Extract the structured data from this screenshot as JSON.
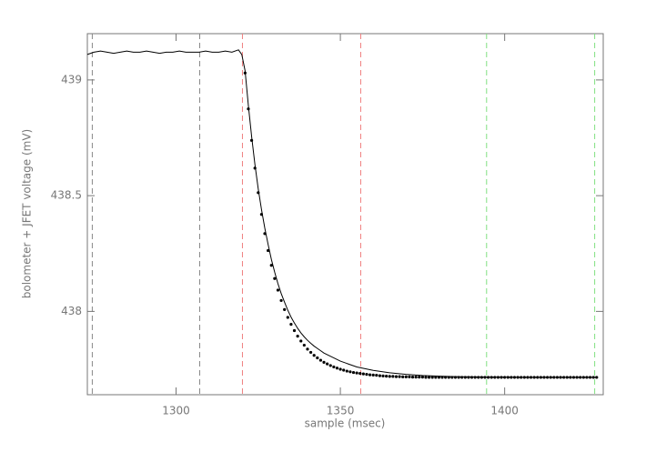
{
  "chart_data": {
    "type": "line",
    "xlabel": "sample (msec)",
    "ylabel": "bolometer + JFET voltage (mV)",
    "xlim": [
      1273,
      1430
    ],
    "ylim": [
      437.64,
      439.2
    ],
    "xticks": [
      1300,
      1350,
      1400
    ],
    "yticks": [
      438,
      438.5,
      439
    ],
    "vlines": [
      {
        "x": 1274.5,
        "color": "#888888"
      },
      {
        "x": 1307.2,
        "color": "#888888"
      },
      {
        "x": 1320.2,
        "color": "#f08080"
      },
      {
        "x": 1356.2,
        "color": "#f08080"
      },
      {
        "x": 1394.5,
        "color": "#80e080"
      },
      {
        "x": 1427.4,
        "color": "#80e080"
      }
    ],
    "series": [
      {
        "type": "line",
        "color": "#000000",
        "x": [
          1273,
          1275,
          1277,
          1279,
          1281,
          1283,
          1285,
          1287,
          1289,
          1291,
          1293,
          1295,
          1297,
          1299,
          1301,
          1303,
          1305,
          1307,
          1309,
          1311,
          1313,
          1315,
          1317,
          1319,
          1320,
          1321,
          1322,
          1323,
          1324,
          1325,
          1326,
          1327,
          1328,
          1329,
          1330,
          1331,
          1332,
          1333,
          1334,
          1335,
          1336,
          1337,
          1338,
          1339,
          1340,
          1341,
          1342,
          1343,
          1344,
          1345,
          1350,
          1355,
          1360,
          1365,
          1370,
          1375,
          1380,
          1385,
          1390,
          1395,
          1400,
          1405,
          1410,
          1415,
          1420,
          1425,
          1428
        ],
        "values": [
          439.11,
          439.12,
          439.125,
          439.12,
          439.115,
          439.12,
          439.125,
          439.12,
          439.12,
          439.125,
          439.12,
          439.115,
          439.12,
          439.12,
          439.125,
          439.12,
          439.12,
          439.12,
          439.125,
          439.12,
          439.12,
          439.125,
          439.12,
          439.13,
          439.11,
          439.04,
          438.89,
          438.755,
          438.635,
          438.53,
          438.44,
          438.36,
          438.29,
          438.225,
          438.17,
          438.12,
          438.077,
          438.04,
          438.005,
          437.975,
          437.95,
          437.927,
          437.907,
          437.89,
          437.875,
          437.862,
          437.85,
          437.84,
          437.83,
          437.82,
          437.785,
          437.76,
          437.745,
          437.735,
          437.728,
          437.723,
          437.72,
          437.718,
          437.717,
          437.716,
          437.716,
          437.715,
          437.715,
          437.715,
          437.715,
          437.715,
          437.715
        ]
      },
      {
        "type": "scatter",
        "color": "#000000",
        "x": [
          1321,
          1322,
          1323,
          1324,
          1325,
          1326,
          1327,
          1328,
          1329,
          1330,
          1331,
          1332,
          1333,
          1334,
          1335,
          1336,
          1337,
          1338,
          1339,
          1340,
          1341,
          1342,
          1343,
          1344,
          1345,
          1346,
          1347,
          1348,
          1349,
          1350,
          1351,
          1352,
          1353,
          1354,
          1355,
          1356,
          1357,
          1358,
          1359,
          1360,
          1361,
          1362,
          1363,
          1364,
          1365,
          1366,
          1367,
          1368,
          1369,
          1370,
          1371,
          1372,
          1373,
          1374,
          1375,
          1376,
          1377,
          1378,
          1379,
          1380,
          1381,
          1382,
          1383,
          1384,
          1385,
          1386,
          1387,
          1388,
          1389,
          1390,
          1391,
          1392,
          1393,
          1394,
          1395,
          1396,
          1397,
          1398,
          1399,
          1400,
          1401,
          1402,
          1403,
          1404,
          1405,
          1406,
          1407,
          1408,
          1409,
          1410,
          1411,
          1412,
          1413,
          1414,
          1415,
          1416,
          1417,
          1418,
          1419,
          1420,
          1421,
          1422,
          1423,
          1424,
          1425,
          1426,
          1427,
          1428
        ],
        "values": [
          439.03,
          438.875,
          438.739,
          438.619,
          438.513,
          438.419,
          438.336,
          438.263,
          438.199,
          438.142,
          438.092,
          438.047,
          438.008,
          437.974,
          437.944,
          437.917,
          437.893,
          437.872,
          437.854,
          437.837,
          437.823,
          437.81,
          437.799,
          437.789,
          437.78,
          437.773,
          437.766,
          437.76,
          437.755,
          437.75,
          437.746,
          437.742,
          437.739,
          437.736,
          437.734,
          437.732,
          437.73,
          437.728,
          437.726,
          437.725,
          437.724,
          437.722,
          437.721,
          437.72,
          437.719,
          437.719,
          437.718,
          437.718,
          437.717,
          437.717,
          437.717,
          437.716,
          437.716,
          437.716,
          437.716,
          437.715,
          437.715,
          437.715,
          437.715,
          437.715,
          437.715,
          437.715,
          437.715,
          437.715,
          437.715,
          437.715,
          437.715,
          437.715,
          437.715,
          437.715,
          437.715,
          437.715,
          437.715,
          437.715,
          437.715,
          437.715,
          437.715,
          437.715,
          437.715,
          437.715,
          437.715,
          437.715,
          437.715,
          437.715,
          437.715,
          437.715,
          437.715,
          437.715,
          437.715,
          437.715,
          437.715,
          437.715,
          437.715,
          437.715,
          437.715,
          437.715,
          437.715,
          437.715,
          437.715,
          437.715,
          437.715,
          437.715,
          437.715,
          437.715,
          437.715,
          437.715,
          437.715,
          437.715
        ]
      }
    ]
  }
}
